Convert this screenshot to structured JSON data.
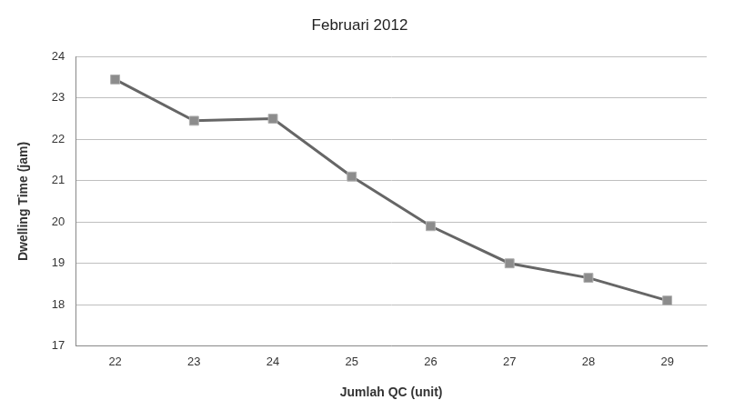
{
  "chart_data": {
    "type": "line",
    "title": "Februari 2012",
    "x_label": "Jumlah QC (unit)",
    "y_label": "Dwelling Time (jam)",
    "categories": [
      "22",
      "23",
      "24",
      "25",
      "26",
      "27",
      "28",
      "29"
    ],
    "values": [
      23.45,
      22.45,
      22.5,
      21.1,
      19.9,
      19.0,
      18.65,
      18.1
    ],
    "color": "#666666",
    "marker": "square",
    "ylim": [
      17,
      24
    ],
    "yticks": [
      17,
      18,
      19,
      20,
      21,
      22,
      23,
      24
    ],
    "grid": true
  }
}
